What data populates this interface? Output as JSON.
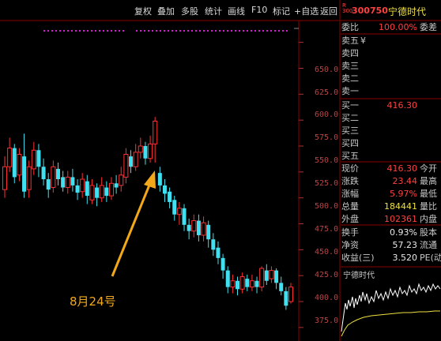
{
  "toolbar": {
    "items": [
      "复权",
      "叠加",
      "多股",
      "统计",
      "画线",
      "F10",
      "标记",
      "+自选",
      "返回"
    ]
  },
  "stock": {
    "market_tag": "R\n300",
    "code": "300750",
    "name": "宁德时代"
  },
  "price_axis": [
    "650.0",
    "625.0",
    "600.0",
    "575.0",
    "550.0",
    "525.0",
    "500.0",
    "475.0",
    "450.0",
    "425.0",
    "400.0",
    "375.0"
  ],
  "order_book": {
    "wei_bi_label": "委比",
    "wei_bi_value": "100.00%",
    "wei_cha_label": "委差",
    "sell": [
      {
        "label": "卖五",
        "price": "",
        "vol": "¥"
      },
      {
        "label": "卖四",
        "price": "",
        "vol": ""
      },
      {
        "label": "卖三",
        "price": "",
        "vol": ""
      },
      {
        "label": "卖二",
        "price": "",
        "vol": ""
      },
      {
        "label": "卖一",
        "price": "",
        "vol": ""
      }
    ],
    "buy": [
      {
        "label": "买一",
        "price": "416.30",
        "vol": ""
      },
      {
        "label": "买二",
        "price": "",
        "vol": ""
      },
      {
        "label": "买三",
        "price": "",
        "vol": ""
      },
      {
        "label": "买四",
        "price": "",
        "vol": ""
      },
      {
        "label": "买五",
        "price": "",
        "vol": ""
      }
    ]
  },
  "quote": [
    {
      "label": "现价",
      "value": "416.30",
      "label2": "今开",
      "color": "red"
    },
    {
      "label": "涨跌",
      "value": "23.44",
      "label2": "最高",
      "color": "red"
    },
    {
      "label": "涨幅",
      "value": "5.97%",
      "label2": "最低",
      "color": "red"
    },
    {
      "label": "总量",
      "value": "184441",
      "label2": "量比",
      "color": "yel"
    },
    {
      "label": "外盘",
      "value": "102361",
      "label2": "内盘",
      "color": "red"
    }
  ],
  "fundamentals": [
    {
      "label": "换手",
      "value": "0.93%",
      "label2": "股本"
    },
    {
      "label": "净资",
      "value": "57.23",
      "label2": "流通"
    },
    {
      "label": "收益(三)",
      "value": "3.520",
      "label2": "PE(动"
    }
  ],
  "mini_chart_title": "宁德时代",
  "annotation": "8月24号",
  "chart_data": {
    "type": "candlestick",
    "y_axis_labels": [
      "650.0",
      "625.0",
      "600.0",
      "575.0",
      "550.0",
      "525.0",
      "500.0",
      "475.0",
      "450.0",
      "425.0",
      "400.0",
      "375.0"
    ],
    "ylim": [
      365,
      668
    ],
    "candles": [
      {
        "o": 508,
        "c": 530,
        "h": 540,
        "l": 500
      },
      {
        "o": 530,
        "c": 548,
        "h": 558,
        "l": 525
      },
      {
        "o": 548,
        "c": 520,
        "h": 552,
        "l": 514
      },
      {
        "o": 522,
        "c": 542,
        "h": 548,
        "l": 516
      },
      {
        "o": 540,
        "c": 506,
        "h": 562,
        "l": 500
      },
      {
        "o": 508,
        "c": 530,
        "h": 536,
        "l": 500
      },
      {
        "o": 528,
        "c": 546,
        "h": 554,
        "l": 522
      },
      {
        "o": 546,
        "c": 530,
        "h": 552,
        "l": 520
      },
      {
        "o": 530,
        "c": 518,
        "h": 538,
        "l": 512
      },
      {
        "o": 518,
        "c": 508,
        "h": 524,
        "l": 500
      },
      {
        "o": 510,
        "c": 530,
        "h": 536,
        "l": 505
      },
      {
        "o": 528,
        "c": 518,
        "h": 534,
        "l": 512
      },
      {
        "o": 520,
        "c": 510,
        "h": 526,
        "l": 506
      },
      {
        "o": 510,
        "c": 520,
        "h": 526,
        "l": 504
      },
      {
        "o": 520,
        "c": 512,
        "h": 528,
        "l": 506
      },
      {
        "o": 512,
        "c": 505,
        "h": 518,
        "l": 498
      },
      {
        "o": 506,
        "c": 518,
        "h": 524,
        "l": 500
      },
      {
        "o": 516,
        "c": 502,
        "h": 522,
        "l": 494
      },
      {
        "o": 498,
        "c": 512,
        "h": 518,
        "l": 494
      },
      {
        "o": 510,
        "c": 500,
        "h": 514,
        "l": 492
      },
      {
        "o": 500,
        "c": 512,
        "h": 520,
        "l": 496
      },
      {
        "o": 510,
        "c": 502,
        "h": 516,
        "l": 496
      },
      {
        "o": 502,
        "c": 514,
        "h": 520,
        "l": 498
      },
      {
        "o": 514,
        "c": 510,
        "h": 522,
        "l": 504
      },
      {
        "o": 512,
        "c": 522,
        "h": 530,
        "l": 506
      },
      {
        "o": 520,
        "c": 542,
        "h": 548,
        "l": 514
      },
      {
        "o": 540,
        "c": 530,
        "h": 546,
        "l": 524
      },
      {
        "o": 530,
        "c": 544,
        "h": 552,
        "l": 526
      },
      {
        "o": 544,
        "c": 550,
        "h": 558,
        "l": 538
      },
      {
        "o": 550,
        "c": 538,
        "h": 554,
        "l": 532
      },
      {
        "o": 538,
        "c": 552,
        "h": 560,
        "l": 534
      },
      {
        "o": 552,
        "c": 574,
        "h": 578,
        "l": 534
      },
      {
        "o": 524,
        "c": 512,
        "h": 530,
        "l": 506
      },
      {
        "o": 512,
        "c": 504,
        "h": 518,
        "l": 496
      },
      {
        "o": 506,
        "c": 496,
        "h": 510,
        "l": 490
      },
      {
        "o": 498,
        "c": 484,
        "h": 502,
        "l": 478
      },
      {
        "o": 484,
        "c": 490,
        "h": 496,
        "l": 474
      },
      {
        "o": 490,
        "c": 474,
        "h": 494,
        "l": 468
      },
      {
        "o": 474,
        "c": 468,
        "h": 480,
        "l": 460
      },
      {
        "o": 468,
        "c": 478,
        "h": 484,
        "l": 462
      },
      {
        "o": 478,
        "c": 464,
        "h": 484,
        "l": 458
      },
      {
        "o": 464,
        "c": 476,
        "h": 482,
        "l": 458
      },
      {
        "o": 474,
        "c": 460,
        "h": 478,
        "l": 452
      },
      {
        "o": 460,
        "c": 450,
        "h": 466,
        "l": 444
      },
      {
        "o": 452,
        "c": 442,
        "h": 458,
        "l": 436
      },
      {
        "o": 442,
        "c": 430,
        "h": 446,
        "l": 422
      },
      {
        "o": 430,
        "c": 414,
        "h": 434,
        "l": 408
      },
      {
        "o": 414,
        "c": 420,
        "h": 426,
        "l": 408
      },
      {
        "o": 420,
        "c": 412,
        "h": 424,
        "l": 406
      },
      {
        "o": 412,
        "c": 424,
        "h": 428,
        "l": 408
      },
      {
        "o": 422,
        "c": 414,
        "h": 426,
        "l": 410
      },
      {
        "o": 414,
        "c": 420,
        "h": 426,
        "l": 410
      },
      {
        "o": 420,
        "c": 414,
        "h": 424,
        "l": 408
      },
      {
        "o": 414,
        "c": 432,
        "h": 434,
        "l": 410
      },
      {
        "o": 430,
        "c": 420,
        "h": 436,
        "l": 416
      },
      {
        "o": 422,
        "c": 430,
        "h": 434,
        "l": 418
      },
      {
        "o": 430,
        "c": 418,
        "h": 432,
        "l": 412
      },
      {
        "o": 418,
        "c": 410,
        "h": 424,
        "l": 406
      },
      {
        "o": 410,
        "c": 396,
        "h": 414,
        "l": 392
      },
      {
        "o": 400,
        "c": 414,
        "h": 418,
        "l": 398
      }
    ]
  },
  "colors": {
    "up": "#ff3030",
    "down": "#40e0f0",
    "axis": "#b03030",
    "arrow": "#f2a818",
    "dots": "#d020d0"
  }
}
